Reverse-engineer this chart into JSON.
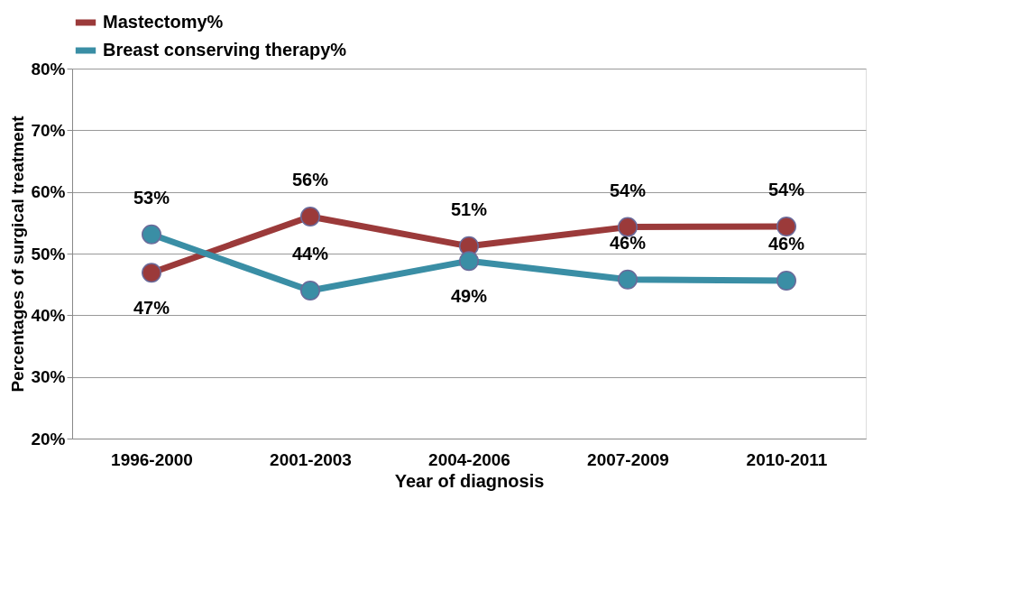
{
  "chart_data": {
    "type": "line",
    "xlabel": "Year of diagnosis",
    "ylabel": "Percentages of surgical treatment",
    "categories": [
      "1996-2000",
      "2001-2003",
      "2004-2006",
      "2007-2009",
      "2010-2011"
    ],
    "series": [
      {
        "name": "Mastectomy%",
        "color": "#9b3a3a",
        "values": [
          46.9,
          56.0,
          51.2,
          54.3,
          54.4
        ],
        "value_labels": [
          "47%",
          "56%",
          "51%",
          "54%",
          "54%"
        ]
      },
      {
        "name": "Breast conserving therapy%",
        "color": "#3a8ea5",
        "values": [
          53.1,
          44.0,
          48.8,
          45.8,
          45.6
        ],
        "value_labels": [
          "53%",
          "44%",
          "49%",
          "46%",
          "46%"
        ]
      }
    ],
    "ylim": [
      20,
      80
    ],
    "yticks": [
      {
        "value": 20,
        "label": "20%"
      },
      {
        "value": 30,
        "label": "30%"
      },
      {
        "value": 40,
        "label": "40%"
      },
      {
        "value": 50,
        "label": "50%"
      },
      {
        "value": 60,
        "label": "60%"
      },
      {
        "value": 70,
        "label": "70%"
      },
      {
        "value": 80,
        "label": "80%"
      }
    ],
    "grid": "y",
    "legend": "top",
    "marker": "circle",
    "line_style": "solid"
  }
}
